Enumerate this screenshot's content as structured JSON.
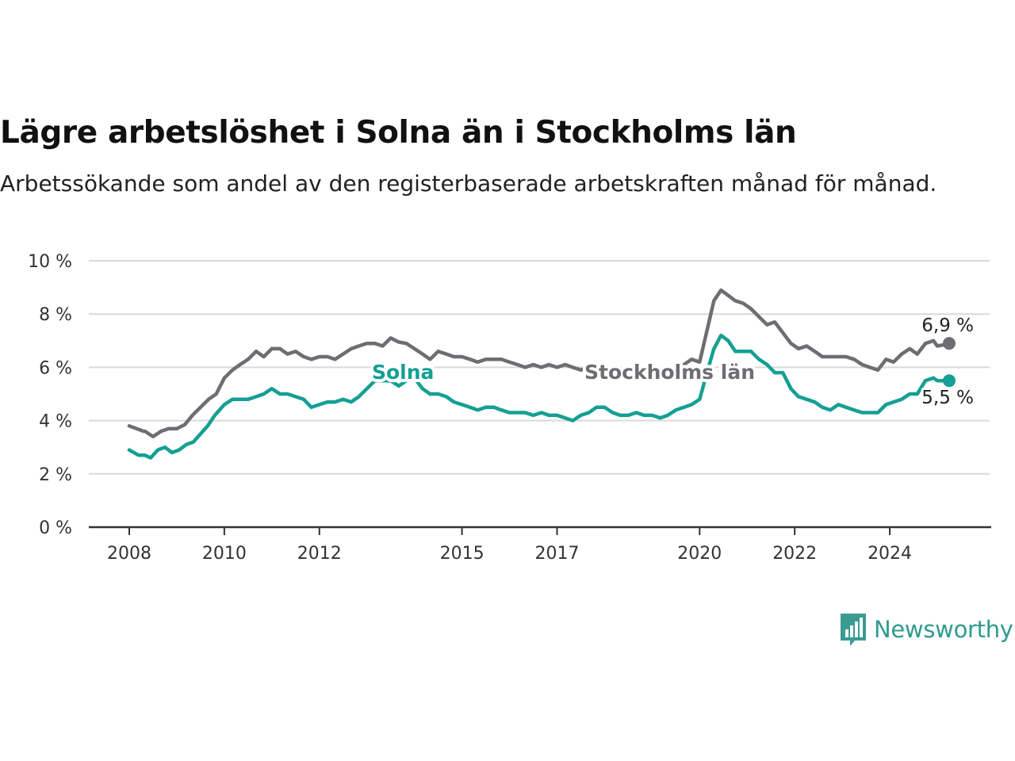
{
  "title": "Lägre arbetslöshet i Solna än i Stockholms län",
  "subtitle": "Arbetssökande som andel av den registerbaserade arbetskraften månad för månad.",
  "logo": {
    "name": "Newsworthy",
    "icon": "bar-chart-speech-bubble-icon",
    "color": "#3a9b91"
  },
  "chart_data": {
    "type": "line",
    "title": "Lägre arbetslöshet i Solna än i Stockholms län",
    "subtitle": "Arbetssökande som andel av den registerbaserade arbetskraften månad för månad.",
    "xlabel": "",
    "ylabel": "",
    "ylim": [
      0,
      10
    ],
    "yticks": [
      0,
      2,
      4,
      6,
      8,
      10
    ],
    "ytick_labels": [
      "0 %",
      "2 %",
      "4 %",
      "6 %",
      "8 %",
      "10 %"
    ],
    "xlim": [
      2008.0,
      2024.9
    ],
    "xticks": [
      2008,
      2010,
      2012,
      2015,
      2017,
      2020,
      2022,
      2024
    ],
    "xtick_labels": [
      "2008",
      "2010",
      "2012",
      "2015",
      "2017",
      "2020",
      "2022",
      "2024"
    ],
    "grid": true,
    "legend": "inline labels",
    "series": [
      {
        "name": "Stockholms län",
        "color": "#6d6d72",
        "end_label": "6,9 %",
        "points": [
          [
            2008.0,
            3.8
          ],
          [
            2008.3,
            3.6
          ],
          [
            2008.33,
            3.6
          ],
          [
            2008.5,
            3.4
          ],
          [
            2008.67,
            3.6
          ],
          [
            2008.83,
            3.7
          ],
          [
            2009.0,
            3.7
          ],
          [
            2009.17,
            3.85
          ],
          [
            2009.33,
            4.2
          ],
          [
            2009.5,
            4.5
          ],
          [
            2009.67,
            4.8
          ],
          [
            2009.83,
            5.0
          ],
          [
            2010.0,
            5.6
          ],
          [
            2010.17,
            5.9
          ],
          [
            2010.33,
            6.1
          ],
          [
            2010.5,
            6.3
          ],
          [
            2010.67,
            6.6
          ],
          [
            2010.83,
            6.4
          ],
          [
            2011.0,
            6.7
          ],
          [
            2011.17,
            6.7
          ],
          [
            2011.33,
            6.5
          ],
          [
            2011.5,
            6.6
          ],
          [
            2011.67,
            6.4
          ],
          [
            2011.83,
            6.3
          ],
          [
            2012.0,
            6.4
          ],
          [
            2012.17,
            6.4
          ],
          [
            2012.33,
            6.3
          ],
          [
            2012.5,
            6.5
          ],
          [
            2012.67,
            6.7
          ],
          [
            2012.83,
            6.8
          ],
          [
            2013.0,
            6.9
          ],
          [
            2013.17,
            6.9
          ],
          [
            2013.33,
            6.8
          ],
          [
            2013.5,
            7.1
          ],
          [
            2013.67,
            6.95
          ],
          [
            2013.83,
            6.9
          ],
          [
            2014.0,
            6.7
          ],
          [
            2014.17,
            6.5
          ],
          [
            2014.33,
            6.3
          ],
          [
            2014.5,
            6.6
          ],
          [
            2014.67,
            6.5
          ],
          [
            2014.83,
            6.4
          ],
          [
            2015.0,
            6.4
          ],
          [
            2015.17,
            6.3
          ],
          [
            2015.33,
            6.2
          ],
          [
            2015.5,
            6.3
          ],
          [
            2015.67,
            6.3
          ],
          [
            2015.83,
            6.3
          ],
          [
            2016.0,
            6.2
          ],
          [
            2016.17,
            6.1
          ],
          [
            2016.33,
            6.0
          ],
          [
            2016.5,
            6.1
          ],
          [
            2016.67,
            6.0
          ],
          [
            2016.83,
            6.1
          ],
          [
            2017.0,
            6.0
          ],
          [
            2017.17,
            6.1
          ],
          [
            2017.33,
            6.0
          ],
          [
            2017.5,
            5.9
          ],
          [
            2017.67,
            6.0
          ],
          [
            2017.83,
            5.9
          ],
          [
            2018.0,
            5.9
          ],
          [
            2018.17,
            5.8
          ],
          [
            2018.33,
            5.8
          ],
          [
            2018.5,
            5.8
          ],
          [
            2018.67,
            5.7
          ],
          [
            2018.83,
            5.8
          ],
          [
            2019.0,
            5.8
          ],
          [
            2019.17,
            5.7
          ],
          [
            2019.33,
            5.9
          ],
          [
            2019.5,
            6.0
          ],
          [
            2019.67,
            6.1
          ],
          [
            2019.83,
            6.3
          ],
          [
            2020.0,
            6.2
          ],
          [
            2020.17,
            7.5
          ],
          [
            2020.3,
            8.5
          ],
          [
            2020.45,
            8.9
          ],
          [
            2020.6,
            8.7
          ],
          [
            2020.75,
            8.5
          ],
          [
            2020.92,
            8.4
          ],
          [
            2021.08,
            8.2
          ],
          [
            2021.25,
            7.9
          ],
          [
            2021.42,
            7.6
          ],
          [
            2021.58,
            7.7
          ],
          [
            2021.75,
            7.3
          ],
          [
            2021.92,
            6.9
          ],
          [
            2022.08,
            6.7
          ],
          [
            2022.25,
            6.8
          ],
          [
            2022.42,
            6.6
          ],
          [
            2022.58,
            6.4
          ],
          [
            2022.75,
            6.4
          ],
          [
            2022.92,
            6.4
          ],
          [
            2023.08,
            6.4
          ],
          [
            2023.25,
            6.3
          ],
          [
            2023.42,
            6.1
          ],
          [
            2023.58,
            6.0
          ],
          [
            2023.75,
            5.9
          ],
          [
            2023.92,
            6.3
          ],
          [
            2024.08,
            6.2
          ],
          [
            2024.25,
            6.5
          ],
          [
            2024.42,
            6.7
          ],
          [
            2024.58,
            6.5
          ],
          [
            2024.75,
            6.9
          ],
          [
            2024.92,
            7.0
          ],
          [
            2025.0,
            6.8
          ],
          [
            2025.15,
            6.85
          ],
          [
            2025.25,
            6.9
          ]
        ]
      },
      {
        "name": "Solna",
        "color": "#159f94",
        "end_label": "5,5 %",
        "points": [
          [
            2008.0,
            2.9
          ],
          [
            2008.2,
            2.7
          ],
          [
            2008.33,
            2.7
          ],
          [
            2008.45,
            2.6
          ],
          [
            2008.6,
            2.9
          ],
          [
            2008.75,
            3.0
          ],
          [
            2008.9,
            2.8
          ],
          [
            2009.05,
            2.9
          ],
          [
            2009.2,
            3.1
          ],
          [
            2009.35,
            3.2
          ],
          [
            2009.5,
            3.5
          ],
          [
            2009.65,
            3.8
          ],
          [
            2009.8,
            4.2
          ],
          [
            2010.0,
            4.6
          ],
          [
            2010.17,
            4.8
          ],
          [
            2010.33,
            4.8
          ],
          [
            2010.5,
            4.8
          ],
          [
            2010.67,
            4.9
          ],
          [
            2010.83,
            5.0
          ],
          [
            2011.0,
            5.2
          ],
          [
            2011.17,
            5.0
          ],
          [
            2011.33,
            5.0
          ],
          [
            2011.5,
            4.9
          ],
          [
            2011.67,
            4.8
          ],
          [
            2011.83,
            4.5
          ],
          [
            2012.0,
            4.6
          ],
          [
            2012.17,
            4.7
          ],
          [
            2012.33,
            4.7
          ],
          [
            2012.5,
            4.8
          ],
          [
            2012.67,
            4.7
          ],
          [
            2012.83,
            4.9
          ],
          [
            2013.0,
            5.2
          ],
          [
            2013.17,
            5.5
          ],
          [
            2013.33,
            5.5
          ],
          [
            2013.5,
            5.5
          ],
          [
            2013.67,
            5.3
          ],
          [
            2013.83,
            5.5
          ],
          [
            2014.0,
            5.6
          ],
          [
            2014.17,
            5.2
          ],
          [
            2014.33,
            5.0
          ],
          [
            2014.5,
            5.0
          ],
          [
            2014.67,
            4.9
          ],
          [
            2014.83,
            4.7
          ],
          [
            2015.0,
            4.6
          ],
          [
            2015.17,
            4.5
          ],
          [
            2015.33,
            4.4
          ],
          [
            2015.5,
            4.5
          ],
          [
            2015.67,
            4.5
          ],
          [
            2015.83,
            4.4
          ],
          [
            2016.0,
            4.3
          ],
          [
            2016.17,
            4.3
          ],
          [
            2016.33,
            4.3
          ],
          [
            2016.5,
            4.2
          ],
          [
            2016.67,
            4.3
          ],
          [
            2016.83,
            4.2
          ],
          [
            2017.0,
            4.2
          ],
          [
            2017.17,
            4.1
          ],
          [
            2017.33,
            4.0
          ],
          [
            2017.5,
            4.2
          ],
          [
            2017.67,
            4.3
          ],
          [
            2017.83,
            4.5
          ],
          [
            2018.0,
            4.5
          ],
          [
            2018.17,
            4.3
          ],
          [
            2018.33,
            4.2
          ],
          [
            2018.5,
            4.2
          ],
          [
            2018.67,
            4.3
          ],
          [
            2018.83,
            4.2
          ],
          [
            2019.0,
            4.2
          ],
          [
            2019.17,
            4.1
          ],
          [
            2019.33,
            4.2
          ],
          [
            2019.5,
            4.4
          ],
          [
            2019.67,
            4.5
          ],
          [
            2019.83,
            4.6
          ],
          [
            2020.0,
            4.8
          ],
          [
            2020.17,
            5.9
          ],
          [
            2020.3,
            6.7
          ],
          [
            2020.45,
            7.2
          ],
          [
            2020.6,
            7.0
          ],
          [
            2020.75,
            6.6
          ],
          [
            2020.92,
            6.6
          ],
          [
            2021.08,
            6.6
          ],
          [
            2021.25,
            6.3
          ],
          [
            2021.42,
            6.1
          ],
          [
            2021.58,
            5.8
          ],
          [
            2021.75,
            5.8
          ],
          [
            2021.92,
            5.2
          ],
          [
            2022.08,
            4.9
          ],
          [
            2022.25,
            4.8
          ],
          [
            2022.42,
            4.7
          ],
          [
            2022.58,
            4.5
          ],
          [
            2022.75,
            4.4
          ],
          [
            2022.92,
            4.6
          ],
          [
            2023.08,
            4.5
          ],
          [
            2023.25,
            4.4
          ],
          [
            2023.42,
            4.3
          ],
          [
            2023.58,
            4.3
          ],
          [
            2023.75,
            4.3
          ],
          [
            2023.92,
            4.6
          ],
          [
            2024.08,
            4.7
          ],
          [
            2024.25,
            4.8
          ],
          [
            2024.42,
            5.0
          ],
          [
            2024.58,
            5.0
          ],
          [
            2024.75,
            5.5
          ],
          [
            2024.92,
            5.6
          ],
          [
            2025.0,
            5.5
          ],
          [
            2025.15,
            5.5
          ],
          [
            2025.25,
            5.5
          ]
        ]
      }
    ]
  }
}
